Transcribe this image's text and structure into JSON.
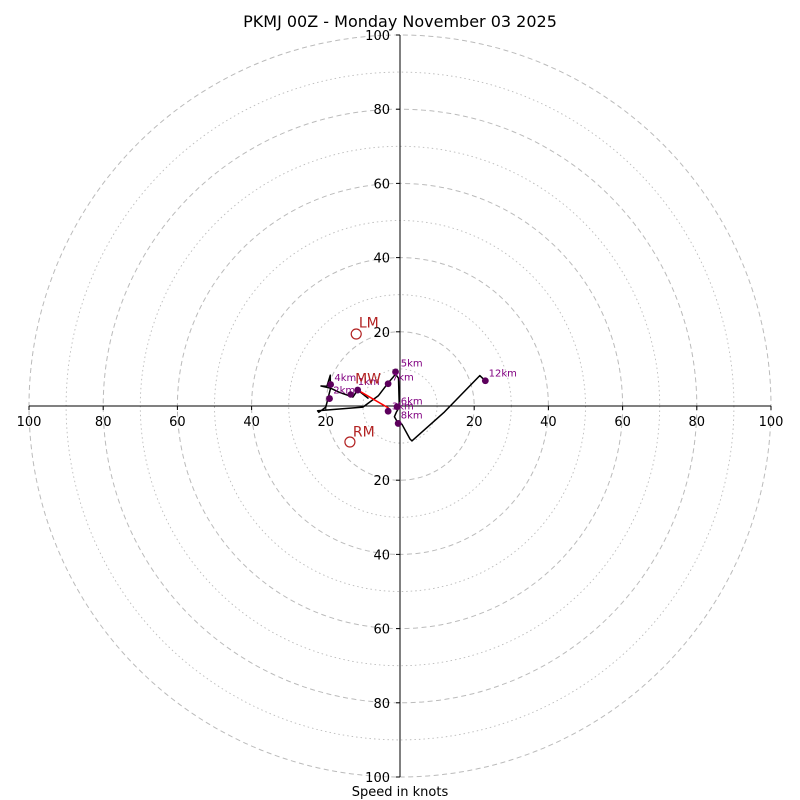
{
  "chart_data": {
    "type": "hodograph",
    "title": "PKMJ 00Z - Monday November 03 2025",
    "xlabel": "Speed in knots",
    "unit": "knots",
    "axis_range": [
      -100,
      100
    ],
    "x_tick_labels": [
      "100",
      "80",
      "60",
      "40",
      "20",
      "20",
      "40",
      "60",
      "80",
      "100"
    ],
    "x_tick_values": [
      -100,
      -80,
      -60,
      -40,
      -20,
      20,
      40,
      60,
      80,
      100
    ],
    "y_tick_labels": [
      "100",
      "80",
      "60",
      "40",
      "20",
      "20",
      "40",
      "60",
      "80",
      "100"
    ],
    "y_tick_values": [
      100,
      80,
      60,
      40,
      20,
      -20,
      -40,
      -60,
      -80,
      -100
    ],
    "rings_major": [
      20,
      40,
      60,
      80,
      100
    ],
    "rings_minor": [
      10,
      30,
      50,
      70,
      90
    ],
    "colors": {
      "trace": "#000000",
      "markers": "#5c005c",
      "height_labels": "#800080",
      "storm_motion": "#b22222",
      "shear_vector": "#ff0000",
      "grid": "#bbbbbb"
    },
    "trace": [
      [
        -8.5,
        2.0
      ],
      [
        -11.4,
        4.3
      ],
      [
        -12.7,
        2.4
      ],
      [
        -16.2,
        3.6
      ],
      [
        -18.7,
        4.8
      ],
      [
        -21.3,
        5.4
      ],
      [
        -19.7,
        5.3
      ],
      [
        -18.8,
        8.3
      ],
      [
        -18.8,
        4.5
      ],
      [
        -20.0,
        -0.3
      ],
      [
        -21.9,
        -1.7
      ],
      [
        -22.2,
        -1.3
      ],
      [
        -10.0,
        -0.3
      ],
      [
        -5.8,
        2.8
      ],
      [
        -3.2,
        6.2
      ],
      [
        -2.0,
        7.6
      ],
      [
        -1.2,
        8.6
      ],
      [
        -0.4,
        7.5
      ],
      [
        -0.2,
        -0.3
      ],
      [
        -1.0,
        -1.7
      ],
      [
        -1.5,
        -2.9
      ],
      [
        -0.9,
        -4.0
      ],
      [
        0.5,
        -4.9
      ],
      [
        2.7,
        -8.9
      ],
      [
        3.2,
        -9.4
      ],
      [
        12.0,
        -1.6
      ],
      [
        21.5,
        8.2
      ],
      [
        23.0,
        6.8
      ]
    ],
    "height_markers": [
      {
        "label": "1km",
        "u": -11.4,
        "v": 4.3,
        "lx": -11.4,
        "ly": 5.6
      },
      {
        "label": "2km",
        "u": -19.0,
        "v": 2.0,
        "lx": -18.0,
        "ly": 3.4
      },
      {
        "label": "3km",
        "u": -3.2,
        "v": -1.4,
        "lx": -2.2,
        "ly": -0.9
      },
      {
        "label": "4km",
        "u": -18.7,
        "v": 5.8,
        "lx": -17.7,
        "ly": 6.7
      },
      {
        "label": "5km",
        "u": -1.2,
        "v": 9.2,
        "lx": 0.2,
        "ly": 10.6
      },
      {
        "label": "6km",
        "u": -0.8,
        "v": -0.2,
        "lx": 0.2,
        "ly": 0.4
      },
      {
        "label": "7km",
        "u": -3.2,
        "v": 6.0,
        "lx": -2.2,
        "ly": 6.9
      },
      {
        "label": "8km",
        "u": -0.5,
        "v": -4.7,
        "lx": 0.2,
        "ly": -3.4
      },
      {
        "label": "12km",
        "u": 23.0,
        "v": 6.8,
        "lx": 23.9,
        "ly": 7.9
      }
    ],
    "mean_wind": {
      "label": "MW",
      "u": -13.3,
      "v": 3.1,
      "lx": -12.1,
      "ly": 6.0
    },
    "left_mover": {
      "label": "LM",
      "u": -11.8,
      "v": 19.4,
      "lx": -11.1,
      "ly": 21.1
    },
    "right_mover": {
      "label": "RM",
      "u": -13.5,
      "v": -9.7,
      "lx": -12.7,
      "ly": -8.2
    },
    "bulk_shear": {
      "from": [
        -11.4,
        4.3
      ],
      "to": [
        -3.0,
        -0.6
      ]
    }
  }
}
